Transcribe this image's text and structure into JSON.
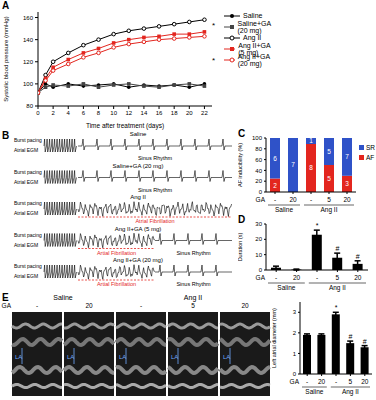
{
  "chart_data": [
    {
      "type": "line",
      "panel": "A",
      "x_label": "Time after treatment (days)",
      "y_label": "Systolic blood pressure (mmHg)",
      "x": [
        0,
        1,
        2,
        4,
        6,
        8,
        10,
        12,
        14,
        16,
        18,
        20,
        22
      ],
      "xlim": [
        0,
        23
      ],
      "xticks": [
        0,
        2,
        4,
        6,
        8,
        10,
        12,
        14,
        16,
        18,
        20,
        22
      ],
      "ylim": [
        80,
        165
      ],
      "yticks": [
        80,
        100,
        120,
        140,
        160
      ],
      "legend": "right",
      "annotations": [
        "*",
        "*"
      ],
      "series": [
        {
          "name": "Saline",
          "color": "#000000",
          "marker": "circle",
          "values": [
            92,
            100,
            97,
            100,
            98,
            99,
            100,
            97,
            99,
            98,
            99,
            97,
            100
          ]
        },
        {
          "name": "Saline+GA (20 mg)",
          "color": "#444444",
          "marker": "square",
          "values": [
            92,
            97,
            99,
            98,
            100,
            97,
            99,
            100,
            98,
            97,
            99,
            100,
            98
          ]
        },
        {
          "name": "Ang II",
          "color": "#000000",
          "marker": "open_circle",
          "values": [
            92,
            108,
            120,
            128,
            135,
            140,
            145,
            148,
            150,
            152,
            154,
            156,
            158
          ]
        },
        {
          "name": "Ang II+GA (5 mg)",
          "color": "#e3261f",
          "marker": "square",
          "values": [
            92,
            105,
            115,
            122,
            128,
            132,
            137,
            140,
            142,
            143,
            145,
            145,
            147
          ]
        },
        {
          "name": "Ang II+GA (20 mg)",
          "color": "#e3261f",
          "marker": "open_circle",
          "values": [
            92,
            103,
            112,
            118,
            124,
            128,
            133,
            136,
            138,
            140,
            141,
            142,
            143
          ]
        }
      ]
    },
    {
      "type": "bar",
      "panel": "C",
      "stacked": true,
      "categories": [
        "-",
        "20",
        "-",
        "5",
        "20"
      ],
      "groups": [
        "Saline",
        "Saline",
        "Ang II",
        "Ang II",
        "Ang II"
      ],
      "x_label": "GA",
      "y_label": "AF inducibility (%)",
      "ylim": [
        0,
        100
      ],
      "yticks": [
        0,
        20,
        40,
        60,
        80,
        100
      ],
      "legend": "right",
      "series": [
        {
          "name": "SR",
          "color": "#2f52c8",
          "values": [
            75,
            100,
            11.1,
            50,
            70
          ],
          "counts": [
            6,
            7,
            1,
            5,
            7
          ]
        },
        {
          "name": "AF",
          "color": "#e3261f",
          "values": [
            25,
            0,
            88.9,
            50,
            30
          ],
          "counts": [
            2,
            null,
            8,
            5,
            3
          ]
        }
      ]
    },
    {
      "type": "bar",
      "panel": "D",
      "categories": [
        "-",
        "20",
        "-",
        "5",
        "20"
      ],
      "groups": [
        "Saline",
        "Saline",
        "Ang II",
        "Ang II",
        "Ang II"
      ],
      "x_label": "GA",
      "y_label": "Duration (s)",
      "ylim": [
        0,
        30
      ],
      "yticks": [
        0,
        10,
        20,
        30
      ],
      "color": "#000000",
      "values": [
        1.5,
        0.3,
        23,
        8,
        4
      ],
      "errors": [
        1,
        0.3,
        3,
        3,
        2
      ],
      "annotations": [
        null,
        null,
        "*",
        "#",
        "#"
      ]
    },
    {
      "type": "bar",
      "categories": [
        "-",
        "20",
        "-",
        "5",
        "20"
      ],
      "groups": [
        "Saline",
        "Saline",
        "Ang II",
        "Ang II",
        "Ang II"
      ],
      "x_label": "GA",
      "y_label": "Left atrial diameter (mm)",
      "ylim": [
        0,
        3.5
      ],
      "yticks": [
        0,
        1,
        2,
        3
      ],
      "color": "#000000",
      "values": [
        1.9,
        1.9,
        2.9,
        1.5,
        1.3
      ],
      "errors": [
        0.05,
        0.05,
        0.1,
        0.1,
        0.08
      ],
      "annotations": [
        null,
        null,
        "*",
        "#",
        "#"
      ]
    }
  ],
  "traces": {
    "panel": "B",
    "pacing": "Burst pacing",
    "lead": "Atrial EGM",
    "rows": [
      {
        "condition": "Saline",
        "segments": [
          {
            "label": "Sinus Rhythm",
            "af": false
          }
        ]
      },
      {
        "condition": "Saline+GA (20 mg)",
        "segments": [
          {
            "label": "Sinus Rhythm",
            "af": false
          }
        ]
      },
      {
        "condition": "Ang II",
        "segments": [
          {
            "label": "Atrial Fibrillation",
            "af": true
          }
        ]
      },
      {
        "condition": "Ang II+GA (5 mg)",
        "segments": [
          {
            "label": "Artial Fibrillation",
            "af": true
          },
          {
            "label": "Sinus Rhythm",
            "af": false
          }
        ]
      },
      {
        "condition": "Ang II+GA (20 mg)",
        "segments": [
          {
            "label": "Artial Fibrillation",
            "af": true
          },
          {
            "label": "Sinus Rhythm",
            "af": false
          }
        ]
      }
    ]
  },
  "echo": {
    "panel": "E",
    "groups": [
      "Saline",
      "Saline",
      "Ang II",
      "Ang II",
      "Ang II"
    ],
    "categories": [
      "-",
      "20",
      "-",
      "5",
      "20"
    ],
    "x_label": "GA",
    "chamber_label": "LA"
  }
}
